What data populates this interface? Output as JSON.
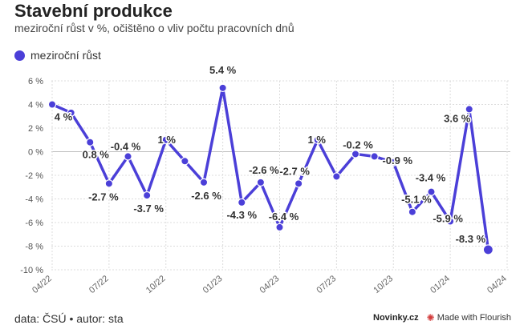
{
  "header": {
    "title": "Stavební produkce",
    "subtitle": "meziroční růst v %, očištěno o vliv počtu pracovních dnů"
  },
  "footer": {
    "source": "data: ČSÚ • autor: sta",
    "brand": "Novinky.cz",
    "credit": "Made with Flourish"
  },
  "colors": {
    "series": "#4b3fd8",
    "grid": "#dcdcdc",
    "label": "#333333"
  },
  "chart_data": {
    "type": "line",
    "title": "Stavební produkce",
    "subtitle": "meziroční růst v %, očištěno o vliv počtu pracovních dnů",
    "legend_position": "top-left",
    "grid": true,
    "ylim": [
      -10,
      6
    ],
    "yticks": [
      6,
      4,
      2,
      0,
      -2,
      -4,
      -6,
      -8,
      -10
    ],
    "ytick_labels": [
      "6 %",
      "4 %",
      "2 %",
      "0 %",
      "-2 %",
      "-4 %",
      "-6 %",
      "-8 %",
      "-10 %"
    ],
    "x": [
      "2022-04",
      "2022-05",
      "2022-06",
      "2022-07",
      "2022-08",
      "2022-09",
      "2022-10",
      "2022-11",
      "2022-12",
      "2023-01",
      "2023-02",
      "2023-03",
      "2023-04",
      "2023-05",
      "2023-06",
      "2023-07",
      "2023-08",
      "2023-09",
      "2023-10",
      "2023-11",
      "2023-12",
      "2024-01",
      "2024-02",
      "2024-03"
    ],
    "xticks": [
      "2022-04",
      "2022-07",
      "2022-10",
      "2023-01",
      "2023-04",
      "2023-07",
      "2023-10",
      "2024-01",
      "2024-04"
    ],
    "xtick_labels": [
      "04/22",
      "07/22",
      "10/22",
      "01/23",
      "04/23",
      "07/23",
      "10/23",
      "01/24",
      "04/24"
    ],
    "series": [
      {
        "name": "meziroční růst",
        "values": [
          4.0,
          3.3,
          0.8,
          -2.7,
          -0.4,
          -3.7,
          1.0,
          -0.8,
          -2.6,
          5.4,
          -4.3,
          -2.6,
          -6.4,
          -2.7,
          1.0,
          -2.1,
          -0.2,
          -0.4,
          -0.9,
          -5.1,
          -3.4,
          -5.9,
          3.6,
          -8.3
        ],
        "data_labels": [
          "4 %",
          "",
          "0.8 %",
          "-2.7 %",
          "-0.4 %",
          "-3.7 %",
          "1 %",
          "",
          "-2.6 %",
          "5.4 %",
          "-4.3 %",
          "-2.6 %",
          "-6.4 %",
          "-2.7 %",
          "1 %",
          "",
          "-0.2 %",
          "",
          "-0.9 %",
          "-5.1 %",
          "-3.4 %",
          "-5.9 %",
          "3.6 %",
          "-8.3 %"
        ]
      }
    ]
  }
}
